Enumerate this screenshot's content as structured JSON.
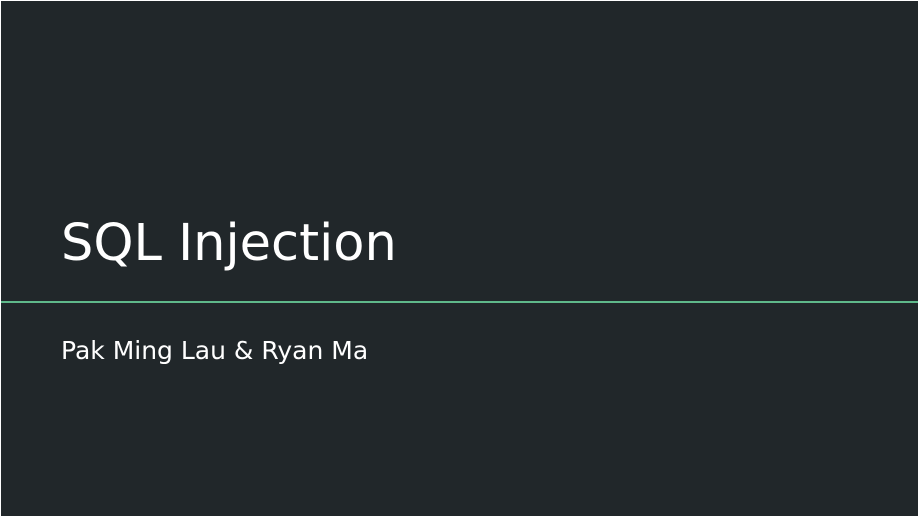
{
  "slide": {
    "title": "SQL Injection",
    "subtitle": "Pak Ming Lau & Ryan Ma"
  },
  "colors": {
    "background": "#21272a",
    "text": "#ffffff",
    "accent_line": "#5fb88a"
  }
}
